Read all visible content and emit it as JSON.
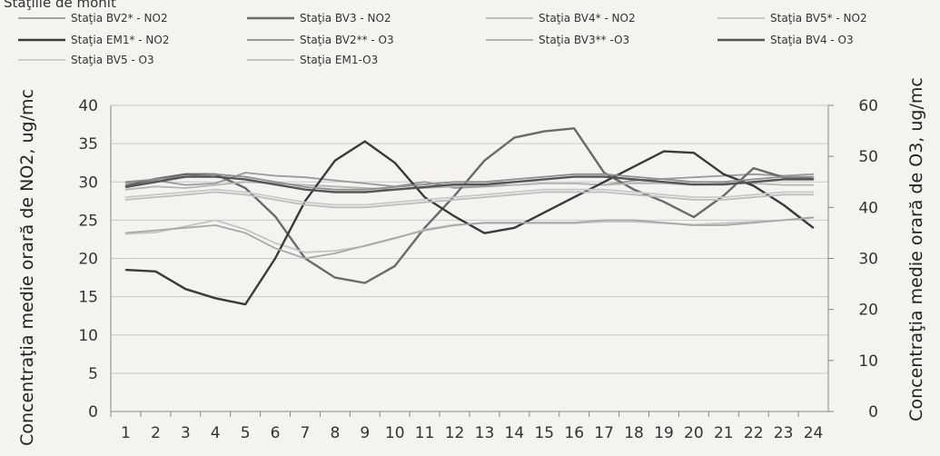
{
  "page": {
    "title_fragment": "Staţiile de monit"
  },
  "chart_data": {
    "type": "line",
    "x": [
      1,
      2,
      3,
      4,
      5,
      6,
      7,
      8,
      9,
      10,
      11,
      12,
      13,
      14,
      15,
      16,
      17,
      18,
      19,
      20,
      21,
      22,
      23,
      24
    ],
    "xlabel": "",
    "ylabel_left": "Concentraţia medie orară de NO2, ug/mc",
    "ylabel_right": "Concentraţia medie orară de O3, ug/mc",
    "ylim_left": [
      0,
      40
    ],
    "ylim_right": [
      0,
      60
    ],
    "yticks_left": [
      0,
      5,
      10,
      15,
      20,
      25,
      30,
      35,
      40
    ],
    "yticks_right": [
      0,
      10,
      20,
      30,
      40,
      50,
      60
    ],
    "grid": true,
    "legend_position": "top",
    "series": [
      {
        "name": "Staţia BV2* - NO2",
        "axis": "left",
        "color": "#9a9a9a",
        "values": [
          29.8,
          30.2,
          29.6,
          29.8,
          31.2,
          30.8,
          30.6,
          30.2,
          29.8,
          29.4,
          30.0,
          29.2,
          29.4,
          29.6,
          29.8,
          29.8,
          29.6,
          30.2,
          30.4,
          30.6,
          30.8,
          31.0,
          30.8,
          31.0
        ]
      },
      {
        "name": "Staţia BV3 - NO2",
        "axis": "left",
        "color": "#6a6a6a",
        "values": [
          29.5,
          30.4,
          31.0,
          31.0,
          29.2,
          25.5,
          20.0,
          17.5,
          16.8,
          19.0,
          24.0,
          28.2,
          32.8,
          35.8,
          36.6,
          37.0,
          31.2,
          29.0,
          27.4,
          25.4,
          28.2,
          31.8,
          30.6,
          30.4
        ]
      },
      {
        "name": "Staţia BV4* - NO2",
        "axis": "left",
        "color": "#b5b5b5",
        "values": [
          29.0,
          29.4,
          29.2,
          29.6,
          30.0,
          29.8,
          29.6,
          29.4,
          29.2,
          29.0,
          29.2,
          29.4,
          29.6,
          29.6,
          29.8,
          29.8,
          29.6,
          29.8,
          29.8,
          29.6,
          29.8,
          29.8,
          29.6,
          29.6
        ]
      },
      {
        "name": "Staţia BV5* - NO2",
        "axis": "left",
        "color": "#c4c4c4",
        "values": [
          23.2,
          23.4,
          24.2,
          25.0,
          23.8,
          22.0,
          20.8,
          21.0,
          21.6,
          22.6,
          23.8,
          24.4,
          24.6,
          24.6,
          24.6,
          24.6,
          24.8,
          24.8,
          24.6,
          24.4,
          24.6,
          24.8,
          25.0,
          25.4
        ]
      },
      {
        "name": "Staţia EM1* - NO2",
        "axis": "left",
        "color": "#3a3a3a",
        "values": [
          18.5,
          18.3,
          16.0,
          14.8,
          14.0,
          20.0,
          27.5,
          32.8,
          35.3,
          32.5,
          28.0,
          25.5,
          23.3,
          24.0,
          26.0,
          28.0,
          30.0,
          32.0,
          34.0,
          33.8,
          31.0,
          29.5,
          27.0,
          24.0
        ]
      },
      {
        "name": "Staţia BV2** - O3",
        "axis": "right",
        "color": "#8e8e8e",
        "values": [
          45.0,
          45.5,
          46.0,
          46.5,
          46.0,
          45.0,
          44.0,
          43.5,
          43.5,
          44.0,
          44.5,
          45.0,
          45.0,
          45.5,
          46.0,
          46.5,
          46.5,
          46.0,
          45.5,
          45.0,
          45.0,
          45.5,
          46.0,
          46.0
        ]
      },
      {
        "name": "Staţia BV3** -O3",
        "axis": "right",
        "color": "#a8a8a8",
        "values": [
          35.0,
          35.5,
          36.0,
          36.5,
          35.0,
          32.0,
          30.0,
          31.0,
          32.5,
          34.0,
          35.5,
          36.5,
          37.0,
          37.0,
          37.0,
          37.0,
          37.5,
          37.5,
          37.0,
          36.5,
          36.5,
          37.0,
          37.5,
          38.0
        ]
      },
      {
        "name": "Staţia BV4 - O3",
        "axis": "right",
        "color": "#555555",
        "values": [
          44.0,
          45.0,
          46.0,
          46.0,
          45.5,
          44.5,
          43.5,
          43.0,
          43.0,
          43.5,
          44.0,
          44.5,
          44.5,
          45.0,
          45.5,
          46.0,
          46.0,
          45.5,
          45.0,
          44.5,
          44.5,
          45.0,
          45.5,
          45.5
        ]
      },
      {
        "name": "Staţia BV5 - O3",
        "axis": "right",
        "color": "#c9c9c9",
        "values": [
          42.0,
          42.5,
          43.0,
          43.5,
          43.0,
          42.0,
          41.0,
          40.5,
          40.5,
          41.0,
          41.5,
          42.0,
          42.5,
          43.0,
          43.5,
          43.5,
          43.5,
          43.0,
          42.5,
          42.0,
          42.0,
          42.5,
          43.0,
          43.0
        ]
      },
      {
        "name": "Staţia EM1-O3",
        "axis": "right",
        "color": "#bdbdbd",
        "values": [
          41.5,
          42.0,
          42.5,
          43.0,
          42.5,
          41.5,
          40.5,
          40.0,
          40.0,
          40.5,
          41.0,
          41.5,
          42.0,
          42.5,
          43.0,
          43.0,
          43.0,
          42.5,
          42.0,
          41.5,
          41.5,
          42.0,
          42.5,
          42.5
        ]
      }
    ]
  }
}
